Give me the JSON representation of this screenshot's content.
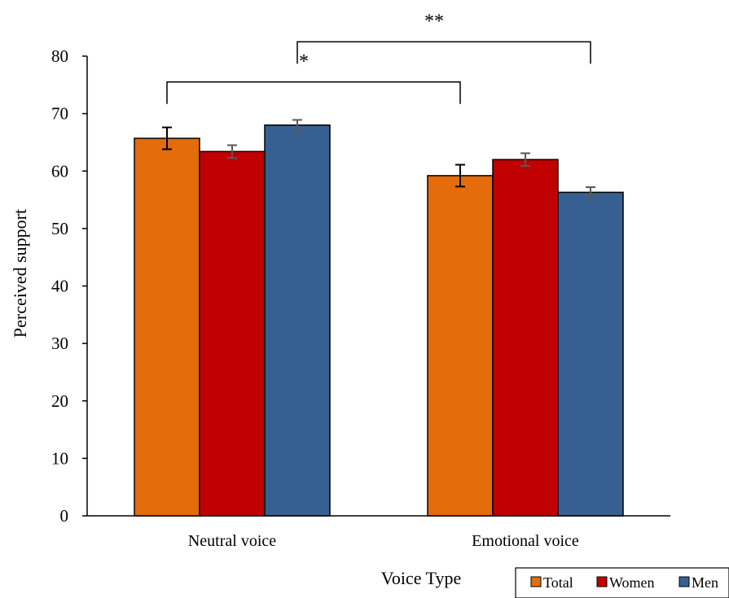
{
  "colors": {
    "Total": "#E46C0A",
    "Women": "#C00000",
    "Men": "#376092",
    "axis": "#000000",
    "error_bar_first": "#000000",
    "error_bar_other": "#595959"
  },
  "chart_data": {
    "type": "bar",
    "title": "",
    "xlabel": "Voice Type",
    "ylabel": "Perceived support",
    "ylim": [
      0,
      80
    ],
    "yticks": [
      0,
      10,
      20,
      30,
      40,
      50,
      60,
      70,
      80
    ],
    "categories": [
      "Neutral voice",
      "Emotional voice"
    ],
    "series": [
      {
        "name": "Total",
        "values": [
          65.7,
          59.2
        ],
        "error": [
          1.9,
          1.9
        ]
      },
      {
        "name": "Women",
        "values": [
          63.4,
          62.0
        ],
        "error": [
          1.1,
          1.1
        ]
      },
      {
        "name": "Men",
        "values": [
          68.0,
          56.3
        ],
        "error": [
          0.9,
          0.9
        ]
      }
    ],
    "grid": false,
    "legend_position": "bottom-right",
    "annotations": [
      {
        "label": "*",
        "from": "Neutral voice / Total",
        "to": "Emotional voice / Total",
        "level": 75.5
      },
      {
        "label": "**",
        "from": "Neutral voice / Men",
        "to": "Emotional voice / Men",
        "level": 82.5
      }
    ]
  }
}
